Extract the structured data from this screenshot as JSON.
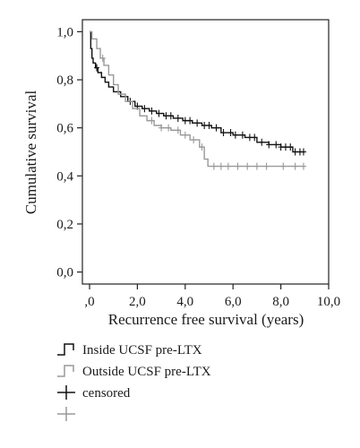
{
  "chart_data": {
    "type": "line",
    "title": "",
    "xlabel": "Recurrence free survival (years)",
    "ylabel": "Cumulative survival",
    "xlim": [
      -0.3,
      10.0
    ],
    "ylim": [
      -0.05,
      1.05
    ],
    "x_ticks": [
      0,
      2,
      4,
      6,
      8,
      10
    ],
    "x_tick_labels": [
      ",0",
      "2,0",
      "4,0",
      "6,0",
      "8,0",
      "10,0"
    ],
    "y_ticks": [
      0,
      0.2,
      0.4,
      0.6,
      0.8,
      1.0
    ],
    "y_tick_labels": [
      "0,0",
      "0,2",
      "0,4",
      "0,6",
      "0,8",
      "1,0"
    ],
    "grid": false,
    "legend_position": "bottom",
    "series": [
      {
        "name": "Inside UCSF pre-LTX",
        "color": "#111111",
        "step": true,
        "x": [
          0,
          0.05,
          0.1,
          0.15,
          0.25,
          0.35,
          0.5,
          0.65,
          0.8,
          1.0,
          1.3,
          1.6,
          1.9,
          2.2,
          2.5,
          2.8,
          3.1,
          3.5,
          3.9,
          4.3,
          4.7,
          5.1,
          5.5,
          6.0,
          6.5,
          7.0,
          7.5,
          8.0,
          8.5,
          9.0
        ],
        "y": [
          1.0,
          0.93,
          0.89,
          0.87,
          0.85,
          0.83,
          0.81,
          0.79,
          0.77,
          0.75,
          0.73,
          0.71,
          0.69,
          0.68,
          0.67,
          0.66,
          0.65,
          0.64,
          0.63,
          0.62,
          0.61,
          0.6,
          0.58,
          0.57,
          0.56,
          0.54,
          0.53,
          0.52,
          0.5,
          0.5
        ],
        "censored_x": [
          0.3,
          1.7,
          2.0,
          2.3,
          2.6,
          2.9,
          3.2,
          3.4,
          3.7,
          4.0,
          4.2,
          4.5,
          4.8,
          5.0,
          5.3,
          5.6,
          5.9,
          6.1,
          6.4,
          6.7,
          6.9,
          7.2,
          7.5,
          7.8,
          8.0,
          8.2,
          8.4,
          8.6,
          8.8,
          8.95
        ]
      },
      {
        "name": "Outside UCSF pre-LTX",
        "color": "#999999",
        "step": true,
        "x": [
          0,
          0.1,
          0.3,
          0.45,
          0.6,
          0.8,
          1.0,
          1.2,
          1.5,
          1.8,
          2.1,
          2.4,
          2.7,
          3.0,
          3.4,
          3.8,
          4.2,
          4.6,
          4.8,
          4.95,
          9.0
        ],
        "y": [
          1.0,
          0.97,
          0.93,
          0.89,
          0.86,
          0.82,
          0.78,
          0.74,
          0.71,
          0.68,
          0.65,
          0.63,
          0.61,
          0.6,
          0.59,
          0.57,
          0.55,
          0.52,
          0.47,
          0.44,
          0.44
        ],
        "censored_x": [
          0.55,
          2.6,
          3.0,
          3.3,
          3.7,
          4.0,
          4.35,
          4.7,
          5.2,
          5.5,
          5.8,
          6.2,
          6.6,
          7.0,
          7.4,
          8.1,
          8.6,
          8.95
        ]
      }
    ]
  },
  "legend": {
    "items": [
      {
        "label": "Inside UCSF pre-LTX",
        "color": "#111111",
        "marker": "step"
      },
      {
        "label": "Outside UCSF pre-LTX",
        "color": "#999999",
        "marker": "step"
      },
      {
        "label": "censored",
        "color": "#111111",
        "marker": "cross"
      },
      {
        "label": "",
        "color": "#999999",
        "marker": "cross"
      }
    ]
  }
}
